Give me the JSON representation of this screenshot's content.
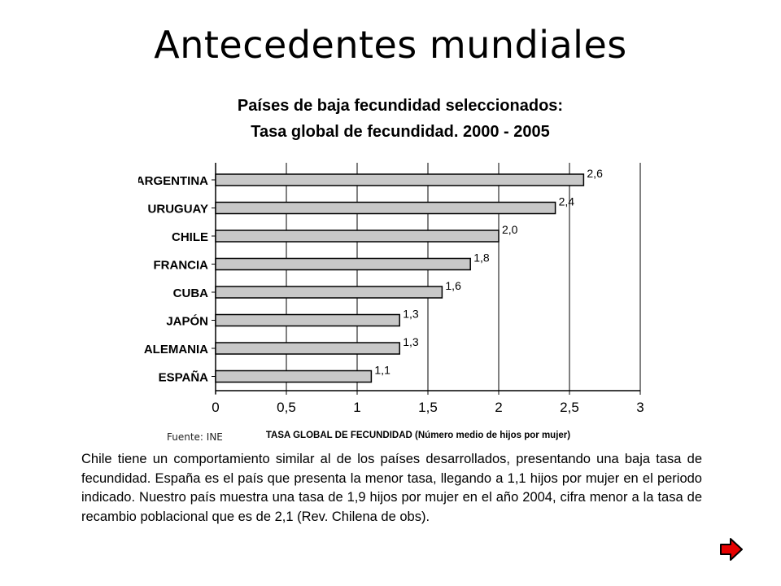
{
  "slide": {
    "title": "Antecedentes mundiales",
    "source": "Fuente: INE",
    "body": "Chile tiene un comportamiento similar al de los países desarrollados, presentando una baja tasa de fecundidad. España es el país que presenta la menor tasa, llegando a 1,1 hijos por mujer en el periodo indicado. Nuestro país muestra una tasa de 1,9 hijos por mujer en el año 2004, cifra menor a la tasa de recambio poblacional que es de 2,1 (Rev. Chilena de obs).",
    "next_icon": "next-arrow-icon",
    "next_color": "#e60000"
  },
  "chart_data": {
    "type": "bar",
    "orientation": "horizontal",
    "title": "Países de baja fecundidad seleccionados:",
    "subtitle": "Tasa global de fecundidad. 2000 - 2005",
    "xlabel": "TASA GLOBAL DE FECUNDIDAD (Número medio de hijos por mujer)",
    "ylabel": "",
    "categories": [
      "ARGENTINA",
      "URUGUAY",
      "CHILE",
      "FRANCIA",
      "CUBA",
      "JAPÓN",
      "ALEMANIA",
      "ESPAÑA"
    ],
    "values": [
      2.6,
      2.4,
      2.0,
      1.8,
      1.6,
      1.3,
      1.3,
      1.1
    ],
    "value_labels": [
      "2,6",
      "2,4",
      "2,0",
      "1,8",
      "1,6",
      "1,3",
      "1,3",
      "1,1"
    ],
    "xlim": [
      0,
      3
    ],
    "xticks": [
      0,
      0.5,
      1,
      1.5,
      2,
      2.5,
      3
    ],
    "xtick_labels": [
      "0",
      "0,5",
      "1",
      "1,5",
      "2",
      "2,5",
      "3"
    ],
    "grid": "vertical",
    "bar_color": "#c8c8c8"
  }
}
